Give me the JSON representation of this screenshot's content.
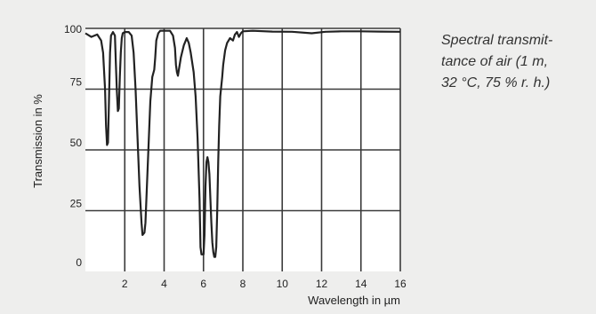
{
  "chart_data": {
    "type": "line",
    "title": "",
    "xlabel": "Wavelength in µm",
    "ylabel": "Transmission in %",
    "xlim": [
      0,
      16
    ],
    "ylim": [
      0,
      100
    ],
    "x_ticks": [
      "2",
      "4",
      "6",
      "8",
      "10",
      "12",
      "14",
      "16"
    ],
    "y_ticks": [
      "0",
      "25",
      "50",
      "75",
      "100"
    ],
    "grid": true,
    "series": [
      {
        "color": "#222222",
        "points": [
          [
            0.0,
            98
          ],
          [
            0.3,
            96.5
          ],
          [
            0.6,
            97.5
          ],
          [
            0.8,
            95
          ],
          [
            0.9,
            90
          ],
          [
            1.0,
            75
          ],
          [
            1.05,
            60
          ],
          [
            1.1,
            52
          ],
          [
            1.15,
            53
          ],
          [
            1.2,
            70
          ],
          [
            1.25,
            90
          ],
          [
            1.3,
            97
          ],
          [
            1.4,
            98.5
          ],
          [
            1.5,
            97
          ],
          [
            1.55,
            85
          ],
          [
            1.6,
            74
          ],
          [
            1.65,
            66
          ],
          [
            1.7,
            67
          ],
          [
            1.75,
            80
          ],
          [
            1.8,
            90
          ],
          [
            1.85,
            96
          ],
          [
            1.9,
            98
          ],
          [
            2.0,
            98.5
          ],
          [
            2.2,
            98.5
          ],
          [
            2.35,
            97
          ],
          [
            2.45,
            90
          ],
          [
            2.55,
            75
          ],
          [
            2.65,
            55
          ],
          [
            2.75,
            35
          ],
          [
            2.85,
            20
          ],
          [
            2.9,
            15
          ],
          [
            3.0,
            16
          ],
          [
            3.05,
            20
          ],
          [
            3.1,
            30
          ],
          [
            3.2,
            50
          ],
          [
            3.3,
            70
          ],
          [
            3.4,
            80
          ],
          [
            3.5,
            83
          ],
          [
            3.55,
            88
          ],
          [
            3.6,
            95
          ],
          [
            3.7,
            98
          ],
          [
            3.8,
            99
          ],
          [
            4.0,
            99
          ],
          [
            4.3,
            99
          ],
          [
            4.45,
            97
          ],
          [
            4.55,
            92
          ],
          [
            4.6,
            85
          ],
          [
            4.65,
            82
          ],
          [
            4.7,
            80.5
          ],
          [
            4.75,
            83
          ],
          [
            4.85,
            88
          ],
          [
            5.0,
            93
          ],
          [
            5.15,
            96
          ],
          [
            5.25,
            94
          ],
          [
            5.35,
            90
          ],
          [
            5.5,
            82
          ],
          [
            5.6,
            72
          ],
          [
            5.7,
            55
          ],
          [
            5.8,
            30
          ],
          [
            5.85,
            10
          ],
          [
            5.9,
            7
          ],
          [
            6.0,
            7
          ],
          [
            6.05,
            15
          ],
          [
            6.1,
            35
          ],
          [
            6.15,
            45
          ],
          [
            6.2,
            47
          ],
          [
            6.25,
            45
          ],
          [
            6.3,
            40
          ],
          [
            6.35,
            30
          ],
          [
            6.4,
            20
          ],
          [
            6.45,
            12
          ],
          [
            6.5,
            8
          ],
          [
            6.55,
            6
          ],
          [
            6.6,
            6
          ],
          [
            6.65,
            10
          ],
          [
            6.7,
            25
          ],
          [
            6.75,
            45
          ],
          [
            6.8,
            60
          ],
          [
            6.85,
            72
          ],
          [
            6.95,
            80
          ],
          [
            7.0,
            85
          ],
          [
            7.05,
            88
          ],
          [
            7.1,
            91
          ],
          [
            7.2,
            94
          ],
          [
            7.35,
            96
          ],
          [
            7.5,
            95
          ],
          [
            7.6,
            97.5
          ],
          [
            7.7,
            98.5
          ],
          [
            7.8,
            96.5
          ],
          [
            7.9,
            98
          ],
          [
            8.0,
            98.8
          ],
          [
            8.5,
            99
          ],
          [
            9.5,
            98.7
          ],
          [
            10.5,
            98.6
          ],
          [
            11.5,
            98
          ],
          [
            12.2,
            98.6
          ],
          [
            13.0,
            98.8
          ],
          [
            14.0,
            98.8
          ],
          [
            15.0,
            98.7
          ],
          [
            16.0,
            98.6
          ]
        ]
      }
    ],
    "annotation_lines": [
      "Spectral transmit-",
      "tance of air (1 m,",
      "32 °C, 75 % r. h.)"
    ]
  },
  "colors": {
    "background": "#eeeeed",
    "plot_background": "#ffffff",
    "grid": "#3a3a3a",
    "line": "#222222"
  }
}
